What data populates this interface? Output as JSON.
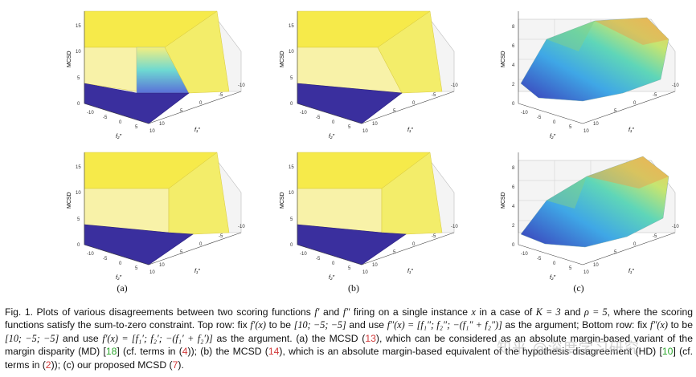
{
  "sublabels": [
    "(a)",
    "(b)",
    "(c)"
  ],
  "axis": {
    "zlabel": "MCSD",
    "xlabel": "f₂″",
    "ylabel": "f₁″",
    "x_ticks": [
      "-10",
      "-5",
      "0",
      "5",
      "10"
    ],
    "y_ticks": [
      "-10",
      "-5",
      "0",
      "5",
      "10"
    ],
    "z_ticks_ab": [
      "0",
      "5",
      "10",
      "15"
    ],
    "z_ticks_c": [
      "0",
      "2",
      "4",
      "6",
      "8"
    ]
  },
  "caption": {
    "seg1": "Fig. 1. Plots of various disagreements between two scoring functions ",
    "f1": "f′",
    "seg2": " and ",
    "f2": "f″",
    "seg3": " firing on a single instance ",
    "x": "x",
    "seg4": " in a case of ",
    "K": "K = 3",
    "seg5": " and ",
    "rho": "ρ = 5",
    "seg6": ", where the scoring functions satisfy the sum-to-zero constraint. Top row: fix ",
    "fx1": "f′(x)",
    "seg7": " to be ",
    "v1": "[10; −5; −5]",
    "seg8": " and use ",
    "fx2": "f″(x) = [f₁″; f₂″; −(f₁″ + f₂″)]",
    "seg9": " as the argument; Bottom row: fix ",
    "fx3": "f″(x)",
    "seg10": " to be ",
    "v2": "[10; −5; −5]",
    "seg11": " and use ",
    "fx4": "f′(x) = [f₁′; f₂′; −(f₁′ + f₂′)]",
    "seg12": " as the argument. (a) the MCSD (",
    "ref13": "13",
    "seg13": "), which can be considered as an absolute margin-based variant of the margin disparity (MD) [",
    "ref18": "18",
    "seg14": "] (cf. terms in (",
    "ref4": "4",
    "seg15": ")); (b) the MCSD (",
    "ref14": "14",
    "seg16": "), which is an absolute margin-based equivalent of the hypothesis disagreement (HD) [",
    "ref10": "10",
    "seg17": "] (cf. terms in (",
    "ref2": "2",
    "seg18": ")); (c) our proposed MCSD (",
    "ref7": "7",
    "seg19": ")."
  },
  "watermark": "知乎 @深度学习研究"
}
